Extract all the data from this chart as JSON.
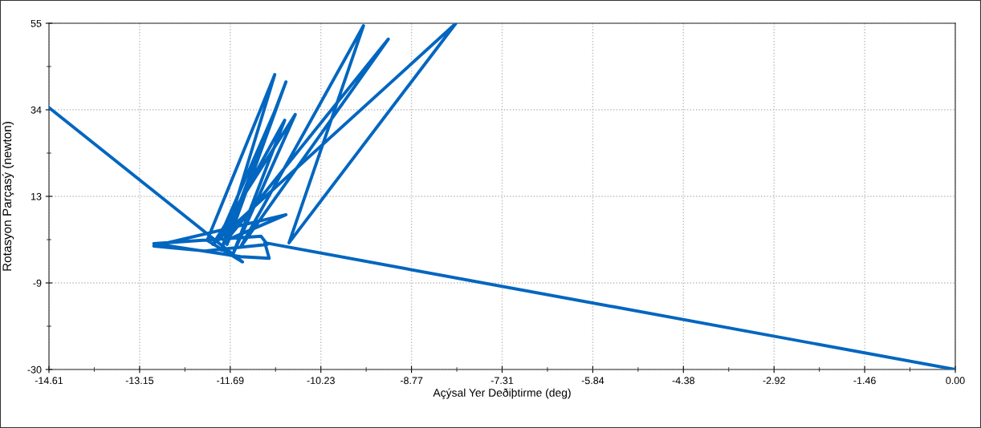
{
  "chart_data": {
    "type": "line",
    "xlabel": "Açýsal Yer Deðiþtirme (deg)",
    "ylabel": "Rotasyon Parçasý (newton)",
    "x": [
      -14.61,
      -11.49,
      -12.06,
      -10.97,
      -11.83,
      -10.79,
      -11.74,
      -10.92,
      -11.88,
      -10.81,
      -11.65,
      -10.64,
      -11.97,
      -8.05,
      -10.74,
      -9.54,
      -11.52,
      -9.14,
      -11.75,
      -10.79,
      -12.92,
      -12.1,
      -11.09,
      -11.19,
      -12.92,
      -11.52,
      -11.06,
      -11.13,
      0.0
    ],
    "series": [
      {
        "color": "#0066c0",
        "values": [
          34.3,
          -3.6,
          1.7,
          42.4,
          -0.7,
          40.6,
          0.7,
          35.1,
          1.7,
          31.2,
          -1.9,
          32.6,
          0.7,
          55,
          1.1,
          54.4,
          0.1,
          51.1,
          1.7,
          8.0,
          0.3,
          -0.9,
          0.7,
          2.7,
          0.9,
          -2.3,
          -2.7,
          1.1,
          -30
        ]
      }
    ],
    "xlim": [
      -14.61,
      0.0
    ],
    "ylim": [
      -30,
      55
    ],
    "xticks": [
      -14.61,
      {
        "value": -13.149,
        "label": "-13.15"
      },
      {
        "value": -11.688,
        "label": "-11.69"
      },
      {
        "value": -10.227,
        "label": "-10.23"
      },
      {
        "value": -8.766,
        "label": "-8.77"
      },
      {
        "value": -7.305,
        "label": "-7.31"
      },
      {
        "value": -5.844,
        "label": "-5.84"
      },
      {
        "value": -4.383,
        "label": "-4.38"
      },
      {
        "value": -2.922,
        "label": "-2.92"
      },
      {
        "value": -1.461,
        "label": "-1.46"
      },
      {
        "value": 0.0,
        "label": "0.00"
      }
    ],
    "yticks": [
      -30,
      {
        "value": -8.75,
        "label": "-9"
      },
      {
        "value": 12.5,
        "label": "13"
      },
      {
        "value": 33.75,
        "label": "34"
      },
      55
    ],
    "grid": true,
    "marker": "none",
    "line_style": "solid"
  }
}
